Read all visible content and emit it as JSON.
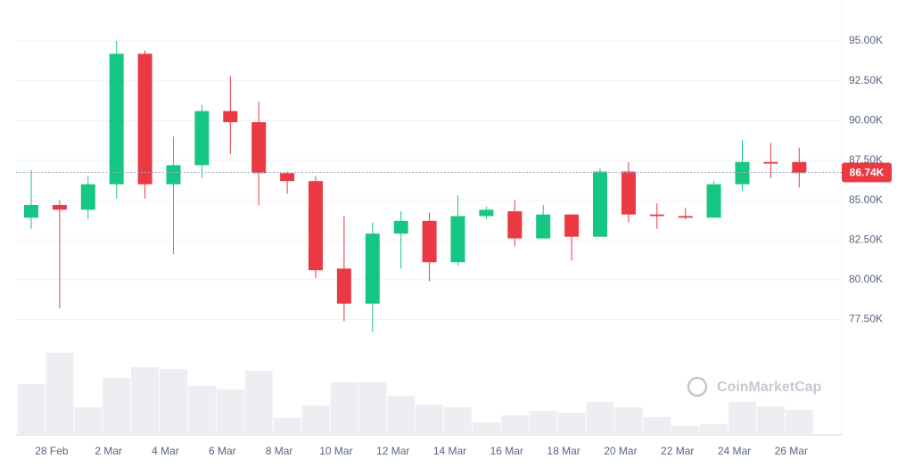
{
  "chart_data": {
    "type": "candlestick",
    "categories": [
      null,
      "28 Feb",
      null,
      "2 Mar",
      null,
      "4 Mar",
      null,
      "6 Mar",
      null,
      "8 Mar",
      null,
      "10 Mar",
      null,
      "12 Mar",
      null,
      "14 Mar",
      null,
      "16 Mar",
      null,
      "18 Mar",
      null,
      "20 Mar",
      null,
      "22 Mar",
      null,
      "24 Mar",
      null,
      "26 Mar"
    ],
    "open": [
      83.9,
      84.7,
      84.4,
      86.0,
      94.2,
      86.0,
      87.2,
      90.6,
      89.9,
      86.7,
      86.2,
      80.7,
      78.5,
      82.9,
      83.7,
      81.1,
      84.0,
      84.3,
      82.6,
      84.1,
      82.7,
      86.8,
      84.1,
      84.0,
      83.9,
      86.0,
      87.4,
      87.4
    ],
    "high": [
      86.9,
      85.0,
      86.5,
      95.0,
      94.4,
      89.0,
      91.0,
      92.8,
      91.2,
      86.8,
      86.5,
      84.0,
      83.6,
      84.3,
      84.2,
      85.3,
      84.6,
      85.0,
      84.7,
      84.1,
      87.0,
      87.4,
      84.8,
      84.5,
      86.2,
      88.8,
      88.6,
      88.3
    ],
    "low": [
      83.2,
      78.2,
      83.8,
      85.1,
      85.1,
      81.6,
      86.4,
      87.9,
      84.7,
      85.4,
      80.1,
      77.4,
      76.7,
      80.7,
      79.9,
      80.9,
      83.8,
      82.1,
      82.6,
      81.2,
      82.7,
      83.6,
      83.2,
      83.8,
      83.9,
      85.6,
      86.4,
      85.8
    ],
    "close": [
      84.7,
      84.4,
      86.0,
      94.2,
      86.0,
      87.2,
      90.6,
      89.9,
      86.7,
      86.2,
      80.6,
      78.5,
      82.9,
      83.7,
      81.1,
      84.0,
      84.4,
      82.6,
      84.1,
      82.7,
      86.8,
      84.1,
      84.0,
      83.9,
      86.0,
      87.4,
      87.3,
      86.7
    ],
    "volume": [
      57,
      92,
      31,
      64,
      76,
      74,
      55,
      51,
      72,
      19,
      33,
      59,
      59,
      44,
      34,
      31,
      14,
      22,
      27,
      25,
      37,
      31,
      20,
      10,
      12,
      37,
      32,
      28
    ],
    "up_color": "#16c784",
    "down_color": "#ea3943",
    "volume_color": "#eceef1",
    "ylim": [
      70.25,
      97.58
    ],
    "yticks": [
      {
        "value": 77.5,
        "label": "77.50K"
      },
      {
        "value": 80,
        "label": "80.00K"
      },
      {
        "value": 82.5,
        "label": "82.50K"
      },
      {
        "value": 85,
        "label": "85.00K"
      },
      {
        "value": 87.5,
        "label": "87.50K"
      },
      {
        "value": 90,
        "label": "90.00K"
      },
      {
        "value": 92.5,
        "label": "92.50K"
      },
      {
        "value": 95,
        "label": "95.00K"
      }
    ],
    "last_price": {
      "value": 86.74,
      "label": "86.74K"
    },
    "watermark": "CoinMarketCap",
    "grid": true
  }
}
